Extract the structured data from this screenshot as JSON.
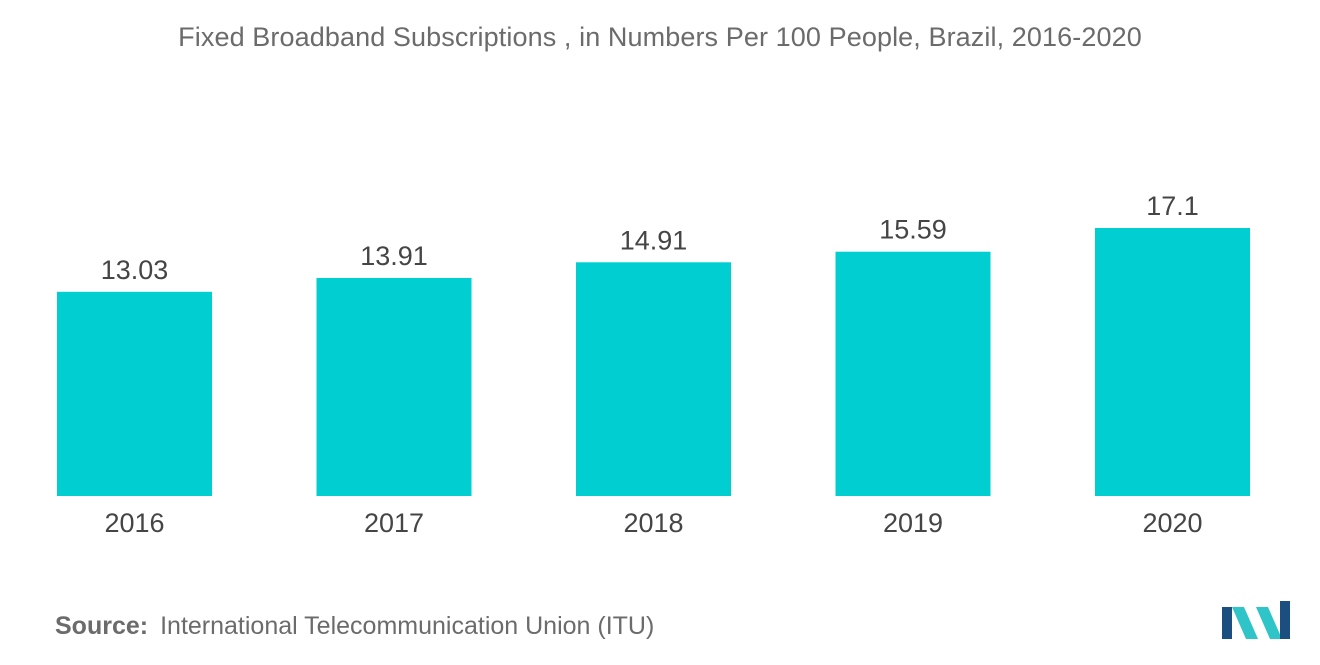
{
  "chart_data": {
    "type": "bar",
    "title": "Fixed Broadband Subscriptions , in Numbers Per 100 People, Brazil, 2016-2020",
    "categories": [
      "2016",
      "2017",
      "2018",
      "2019",
      "2020"
    ],
    "values": [
      13.03,
      13.91,
      14.91,
      15.59,
      17.1
    ],
    "value_labels": [
      "13.03",
      "13.91",
      "14.91",
      "15.59",
      "17.1"
    ],
    "xlabel": "",
    "ylabel": "",
    "ylim": [
      0,
      17.1
    ],
    "grid": false,
    "legend": "none",
    "bar_color": "#00ced1"
  },
  "source": {
    "label": "Source:",
    "text": "International Telecommunication Union (ITU)"
  },
  "logo": {
    "icon": "mordor-intelligence-logo-icon",
    "colors": [
      "#1b4f80",
      "#2ec4c8"
    ]
  }
}
